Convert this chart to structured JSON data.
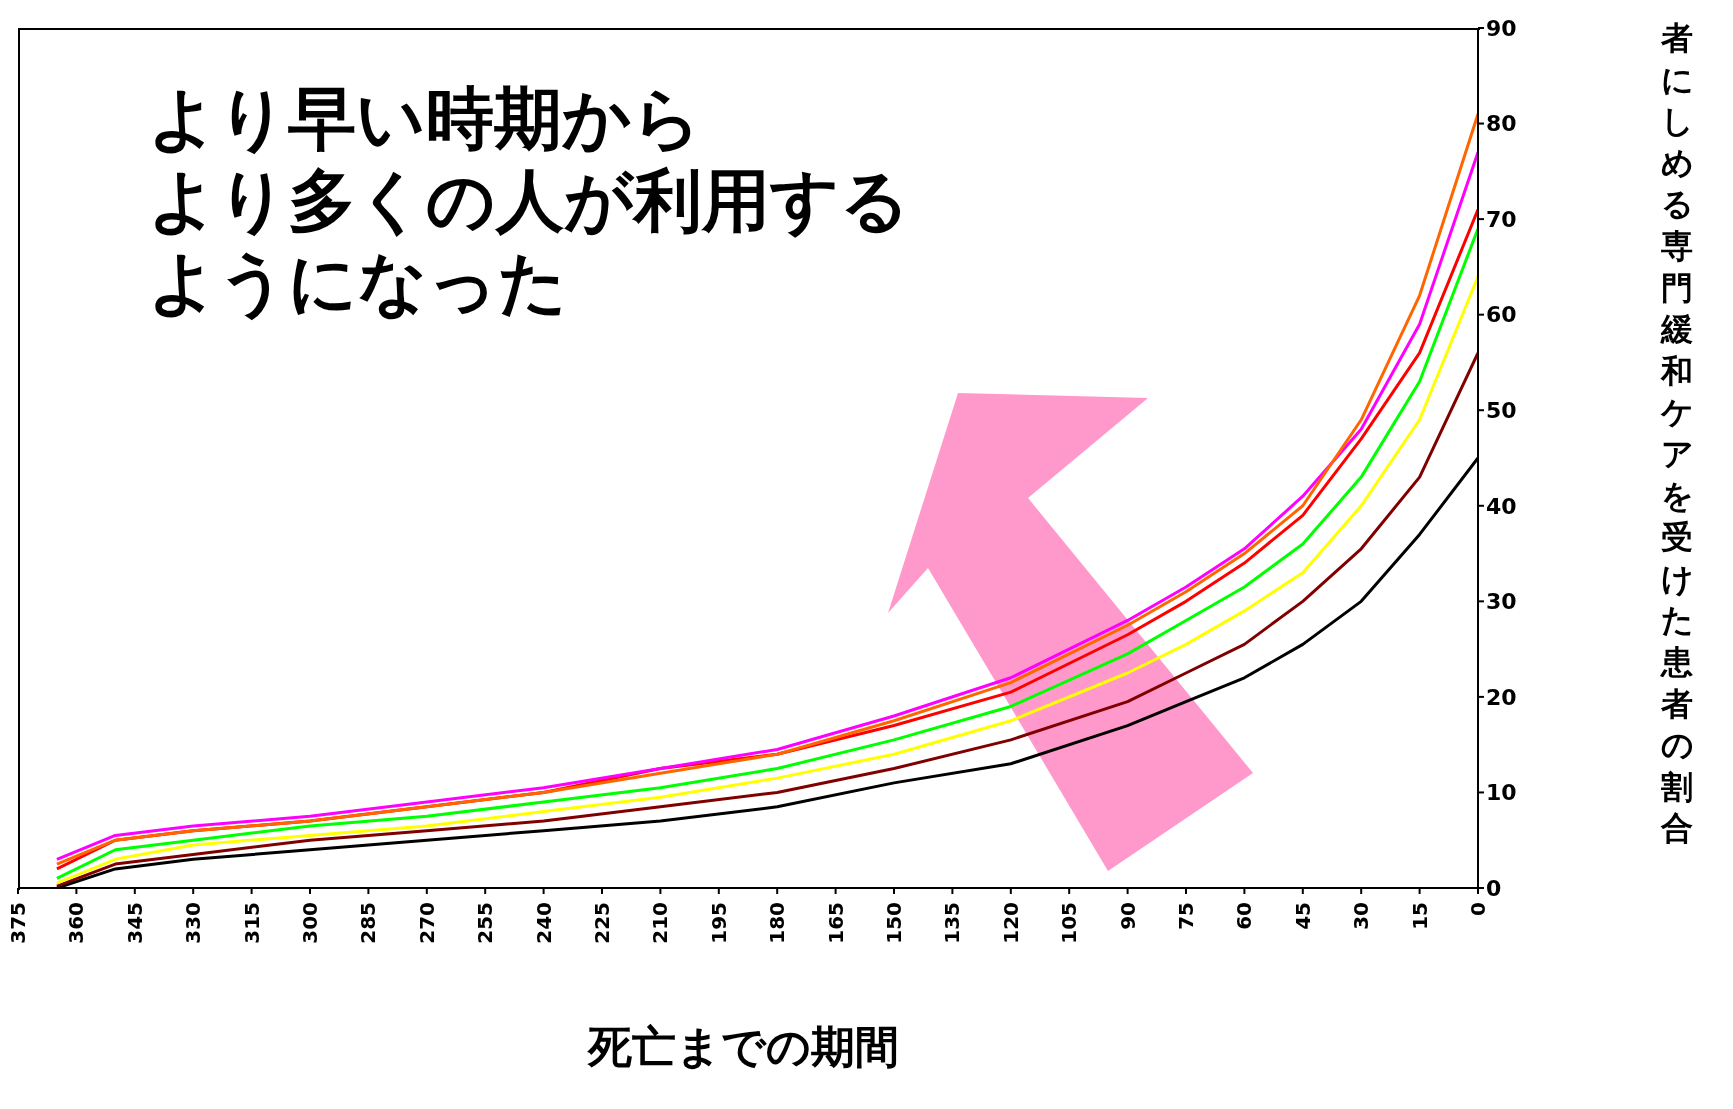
{
  "chart_data": {
    "type": "line",
    "xlabel": "死亡までの期間",
    "ylabel": "者にしめる専門緩和ケアを受けた患者の割合",
    "annotations": [
      "より早い時期から",
      "より多くの人が利用する",
      "ようになった"
    ],
    "x": [
      365,
      350,
      330,
      300,
      270,
      240,
      210,
      180,
      150,
      120,
      90,
      75,
      60,
      45,
      30,
      15,
      0
    ],
    "series": [
      {
        "color": "#000000",
        "values": [
          0,
          2,
          3,
          4,
          5,
          6,
          7,
          8.5,
          11,
          13,
          17,
          19.5,
          22,
          25.5,
          30,
          37,
          45
        ]
      },
      {
        "color": "#800000",
        "values": [
          0.2,
          2.5,
          3.5,
          5,
          6,
          7,
          8.5,
          10,
          12.5,
          15.5,
          19.5,
          22.5,
          25.5,
          30,
          35.5,
          43,
          56
        ]
      },
      {
        "color": "#ffff00",
        "values": [
          0.5,
          3,
          4.5,
          5.5,
          6.5,
          8,
          9.5,
          11.5,
          14,
          17.5,
          22.5,
          25.5,
          29,
          33,
          40,
          49,
          64
        ]
      },
      {
        "color": "#00ff00",
        "values": [
          1,
          4,
          5,
          6.5,
          7.5,
          9,
          10.5,
          12.5,
          15.5,
          19,
          24.5,
          28,
          31.5,
          36,
          43,
          53,
          69
        ]
      },
      {
        "color": "#ff0000",
        "values": [
          2,
          5,
          6,
          7,
          8.5,
          10,
          12.5,
          14,
          17,
          20.5,
          26.5,
          30,
          34,
          39,
          47,
          56,
          71
        ]
      },
      {
        "color": "#ff00ff",
        "values": [
          3,
          5.5,
          6.5,
          7.5,
          9,
          10.5,
          12.5,
          14.5,
          18,
          22,
          28,
          31.5,
          35.5,
          41,
          48,
          59,
          77
        ]
      },
      {
        "color": "#ff6600",
        "values": [
          2.5,
          5,
          6,
          7,
          8.5,
          10,
          12,
          14,
          17.5,
          21.5,
          27.5,
          31,
          35,
          40,
          49,
          62,
          81
        ]
      }
    ],
    "xlim": [
      375,
      0
    ],
    "xticks": [
      375,
      360,
      345,
      330,
      315,
      300,
      285,
      270,
      255,
      240,
      225,
      210,
      195,
      180,
      165,
      150,
      135,
      120,
      105,
      90,
      75,
      60,
      45,
      30,
      15,
      0
    ],
    "ylim": [
      0,
      90
    ],
    "yticks": [
      0,
      10,
      20,
      30,
      40,
      50,
      60,
      70,
      80,
      90
    ],
    "grid": false,
    "legend": false,
    "marker": "none",
    "line_style": "solid"
  }
}
